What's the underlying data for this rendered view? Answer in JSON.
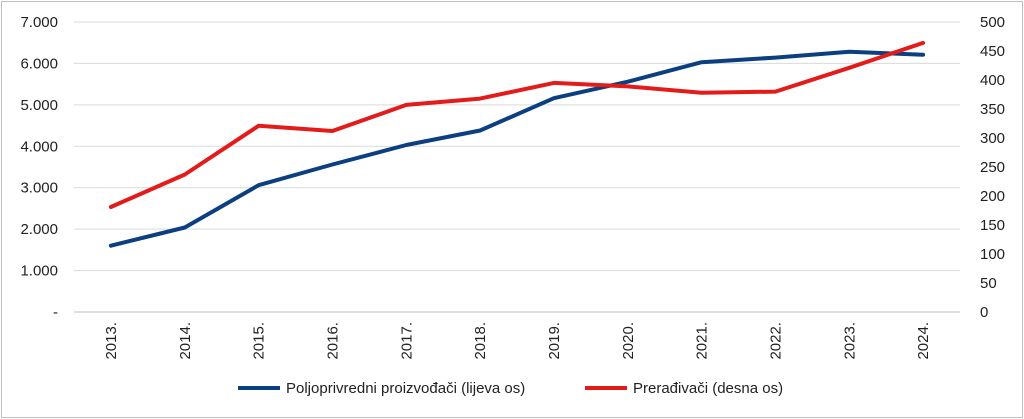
{
  "chart_data": {
    "type": "line",
    "categories": [
      "2013.",
      "2014.",
      "2015.",
      "2016.",
      "2017.",
      "2018.",
      "2019.",
      "2020.",
      "2021.",
      "2022.",
      "2023.",
      "2024."
    ],
    "y_left": {
      "ylim": [
        0,
        7000
      ],
      "ticks": [
        0,
        1000,
        2000,
        3000,
        4000,
        5000,
        6000,
        7000
      ],
      "tick_labels": [
        "-",
        "1.000",
        "2.000",
        "3.000",
        "4.000",
        "5.000",
        "6.000",
        "7.000"
      ]
    },
    "y_right": {
      "ylim": [
        0,
        500
      ],
      "ticks": [
        0,
        50,
        100,
        150,
        200,
        250,
        300,
        350,
        400,
        450,
        500
      ],
      "tick_labels": [
        "0",
        "50",
        "100",
        "150",
        "200",
        "250",
        "300",
        "350",
        "400",
        "450",
        "500"
      ]
    },
    "grid": true,
    "legend_position": "bottom",
    "series": [
      {
        "name": "Poljoprivredni proizvođači (lijeva os)",
        "axis": "left",
        "color": "#0b3f7f",
        "values": [
          1600,
          2040,
          3060,
          3560,
          4030,
          4380,
          5160,
          5560,
          6030,
          6140,
          6280,
          6210
        ]
      },
      {
        "name": "Prerađivači (desna os)",
        "axis": "right",
        "color": "#e31b1b",
        "values": [
          181,
          237,
          321,
          312,
          357,
          368,
          395,
          389,
          378,
          380,
          421,
          464
        ]
      }
    ]
  }
}
